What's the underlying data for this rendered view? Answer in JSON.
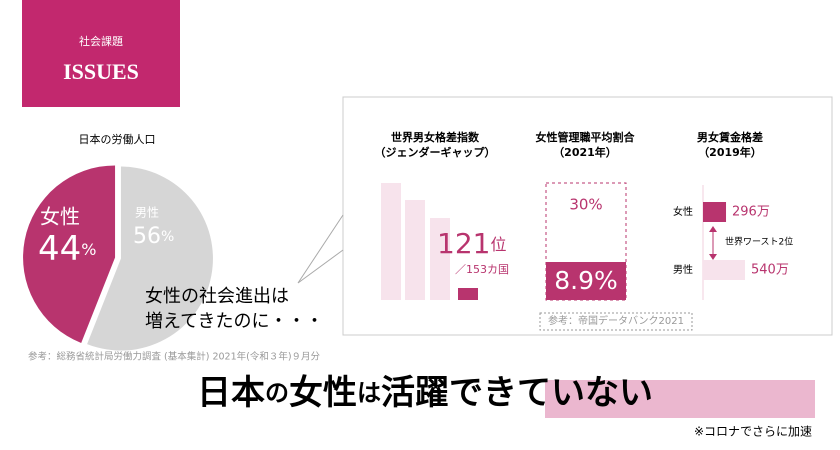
{
  "header": {
    "subtitle": "社会課題",
    "title": "ISSUES"
  },
  "pie": {
    "title": "日本の労働人口",
    "segments": [
      {
        "label": "女性",
        "value": 44,
        "unit": "%",
        "color": "#b8346e"
      },
      {
        "label": "男性",
        "value": 56,
        "unit": "%",
        "color": "#d6d6d6"
      }
    ],
    "source": "参考：総務省統計局労働力調査 (基本集計) 2021年(令和３年)９月分"
  },
  "callout": [
    "女性の社会進出は",
    "増えてきたのに・・・"
  ],
  "panels": [
    {
      "title": [
        "世界男女格差指数",
        "（ジェンダーギャップ）"
      ],
      "rank": 121,
      "rank_unit": "位",
      "rank_total": "／153カ国"
    },
    {
      "title": [
        "女性管理職平均割合",
        "（2021年）"
      ],
      "target": 30,
      "target_label": "30%",
      "actual": 8.9,
      "actual_label": "8.9%",
      "source": "参考：帝国データバンク2021"
    },
    {
      "title": [
        "男女賃金格差",
        "（2019年）"
      ],
      "rows": [
        {
          "label": "女性",
          "value": 296,
          "value_label": "296万"
        },
        {
          "label": "男性",
          "value": 540,
          "value_label": "540万"
        }
      ],
      "note": "世界ワースト2位"
    }
  ],
  "headline": {
    "parts": [
      "日本",
      "の",
      "女性",
      "は",
      "活躍",
      "できていない"
    ]
  },
  "footnote": "※コロナでさらに加速"
}
